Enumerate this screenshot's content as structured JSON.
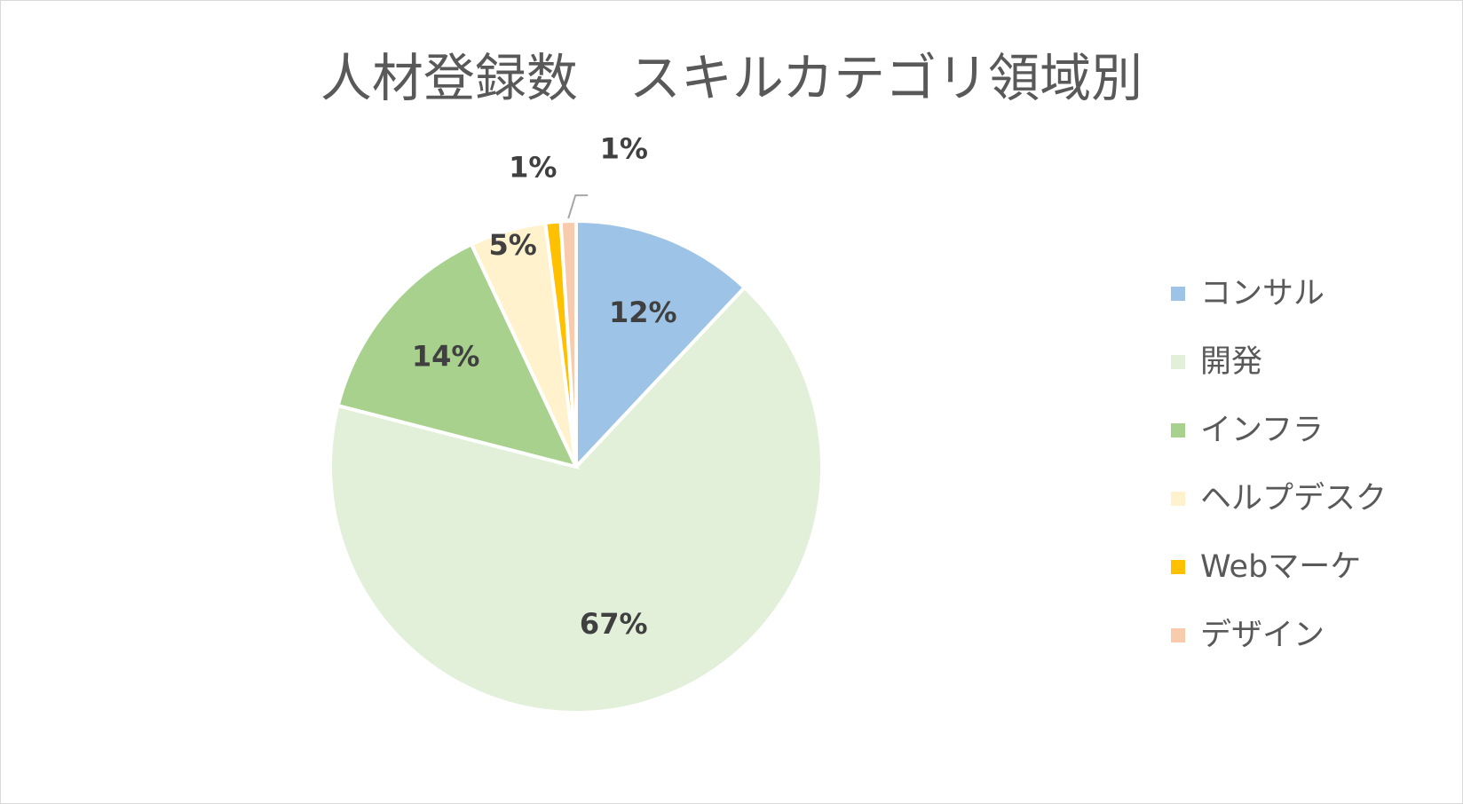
{
  "chart_data": {
    "type": "pie",
    "title": "人材登録数　スキルカテゴリ領域別",
    "categories": [
      "コンサル",
      "開発",
      "インフラ",
      "ヘルプデスク",
      "Webマーケ",
      "デザイン"
    ],
    "values": [
      12,
      67,
      14,
      5,
      1,
      1
    ],
    "data_labels": [
      "12%",
      "67%",
      "14%",
      "5%",
      "1%",
      "1%"
    ],
    "colors": [
      "#9dc3e6",
      "#e2efd9",
      "#a9d18e",
      "#fff2cc",
      "#ffc000",
      "#f8cbad"
    ],
    "legend_position": "right",
    "start_angle": "12 o'clock",
    "direction": "clockwise"
  }
}
